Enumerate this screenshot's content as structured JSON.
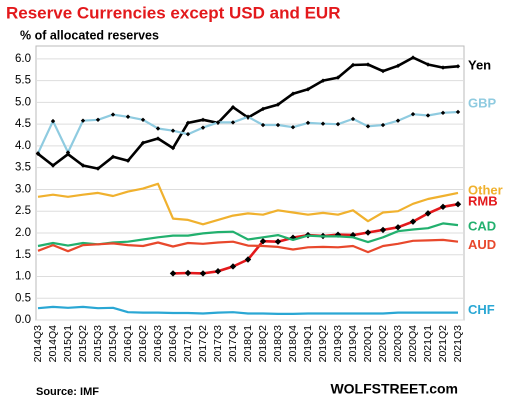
{
  "chart_data": {
    "type": "line",
    "title": "Reserve Currencies except USD and EUR",
    "subtitle": "% of allocated reserves",
    "source": "Source: IMF",
    "credit": "WOLFSTREET.com",
    "categories": [
      "2014Q3",
      "2014Q4",
      "2015Q1",
      "2015Q2",
      "2015Q3",
      "2015Q4",
      "2016Q1",
      "2016Q2",
      "2016Q3",
      "2016Q4",
      "2017Q1",
      "2017Q2",
      "2017Q3",
      "2017Q4",
      "2018Q1",
      "2018Q2",
      "2018Q3",
      "2018Q4",
      "2019Q1",
      "2019Q2",
      "2019Q3",
      "2019Q4",
      "2020Q1",
      "2020Q2",
      "2020Q3",
      "2020Q4",
      "2021Q1",
      "2021Q2",
      "2021Q3"
    ],
    "ylim": [
      0,
      6.25
    ],
    "yticks": [
      {
        "value": 0,
        "label": "0.0"
      },
      0.5,
      {
        "value": 1,
        "label": "1.0"
      },
      1.5,
      {
        "value": 2,
        "label": "2.0"
      },
      2.5,
      {
        "value": 3,
        "label": "3.0"
      },
      3.5,
      {
        "value": 4,
        "label": "4.0"
      },
      4.5,
      {
        "value": 5,
        "label": "5.0"
      },
      5.5,
      {
        "value": 6,
        "label": "6.0"
      }
    ],
    "grid": true,
    "series": [
      {
        "name": "Yen",
        "color": "#000000",
        "markers": true,
        "values": [
          3.82,
          3.55,
          3.81,
          3.55,
          3.48,
          3.75,
          3.66,
          4.07,
          4.17,
          3.95,
          4.53,
          4.6,
          4.53,
          4.89,
          4.65,
          4.85,
          4.95,
          5.2,
          5.3,
          5.5,
          5.57,
          5.86,
          5.87,
          5.72,
          5.84,
          6.03,
          5.87,
          5.8,
          5.83
        ]
      },
      {
        "name": "GBP",
        "color": "#8fcbe0",
        "markers": true,
        "values": [
          3.83,
          4.57,
          3.85,
          4.58,
          4.6,
          4.72,
          4.67,
          4.6,
          4.4,
          4.35,
          4.27,
          4.42,
          4.54,
          4.54,
          4.67,
          4.48,
          4.48,
          4.43,
          4.53,
          4.51,
          4.5,
          4.62,
          4.45,
          4.48,
          4.58,
          4.73,
          4.7,
          4.76,
          4.78
        ]
      },
      {
        "name": "Other",
        "color": "#f0b12e",
        "markers": false,
        "values": [
          2.83,
          2.88,
          2.83,
          2.88,
          2.92,
          2.85,
          2.95,
          3.02,
          3.13,
          2.33,
          2.3,
          2.2,
          2.3,
          2.4,
          2.45,
          2.42,
          2.52,
          2.47,
          2.42,
          2.46,
          2.42,
          2.52,
          2.27,
          2.47,
          2.5,
          2.67,
          2.78,
          2.85,
          2.92
        ]
      },
      {
        "name": "RMB",
        "color": "#e3191c",
        "markers": true,
        "values": [
          null,
          null,
          null,
          null,
          null,
          null,
          null,
          null,
          null,
          1.07,
          1.08,
          1.07,
          1.12,
          1.23,
          1.39,
          1.81,
          1.8,
          1.89,
          1.95,
          1.93,
          1.96,
          1.95,
          2.01,
          2.07,
          2.13,
          2.26,
          2.45,
          2.6,
          2.66
        ]
      },
      {
        "name": "CAD",
        "color": "#22b06e",
        "markers": false,
        "values": [
          1.7,
          1.77,
          1.71,
          1.77,
          1.74,
          1.78,
          1.8,
          1.85,
          1.9,
          1.94,
          1.94,
          1.99,
          2.02,
          2.03,
          1.85,
          1.9,
          1.95,
          1.84,
          1.94,
          1.92,
          1.92,
          1.9,
          1.79,
          1.9,
          2.04,
          2.08,
          2.11,
          2.22,
          2.18
        ]
      },
      {
        "name": "AUD",
        "color": "#e8482c",
        "markers": false,
        "values": [
          1.59,
          1.72,
          1.58,
          1.72,
          1.74,
          1.76,
          1.72,
          1.7,
          1.78,
          1.69,
          1.77,
          1.75,
          1.78,
          1.8,
          1.71,
          1.7,
          1.68,
          1.62,
          1.67,
          1.68,
          1.67,
          1.7,
          1.56,
          1.7,
          1.75,
          1.82,
          1.83,
          1.84,
          1.8
        ]
      },
      {
        "name": "CHF",
        "color": "#2aa7d4",
        "markers": false,
        "values": [
          0.27,
          0.3,
          0.28,
          0.3,
          0.27,
          0.28,
          0.18,
          0.17,
          0.17,
          0.16,
          0.16,
          0.15,
          0.17,
          0.18,
          0.15,
          0.15,
          0.14,
          0.14,
          0.15,
          0.15,
          0.15,
          0.15,
          0.15,
          0.15,
          0.17,
          0.17,
          0.17,
          0.17,
          0.17
        ]
      }
    ]
  }
}
